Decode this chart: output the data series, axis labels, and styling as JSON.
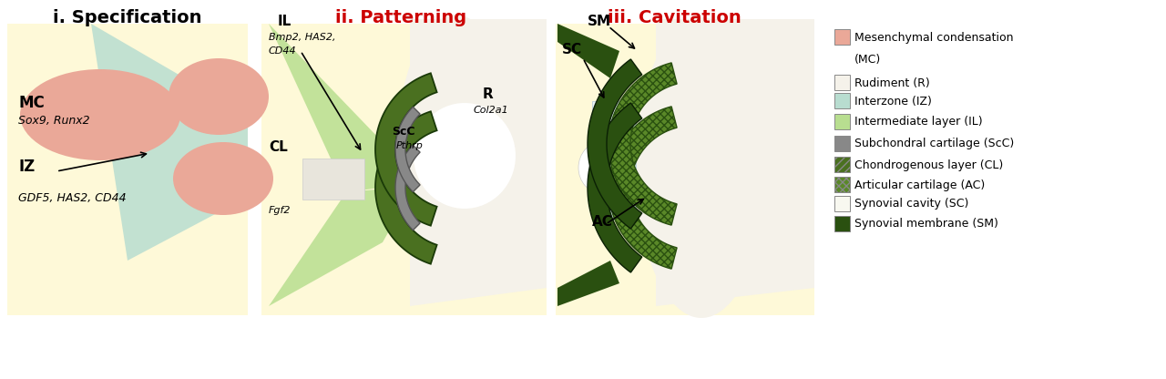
{
  "title_i": "i. Specification",
  "title_ii": "ii. Patterning",
  "title_iii": "iii. Cavitation",
  "tc_i": "#000000",
  "tc_ii": "#cc0000",
  "tc_iii": "#cc0000",
  "bg": "#fef9d8",
  "mc": "#eaa898",
  "iz": "#b8ddd0",
  "il": "#b8de90",
  "scc": "#888888",
  "cl": "#4a7020",
  "ac": "#5a8828",
  "sc_cav": "#e8f4f8",
  "sm": "#2a5010",
  "rud": "#f5f2ea",
  "jt_space": "#e8e5dc",
  "white": "#ffffff"
}
